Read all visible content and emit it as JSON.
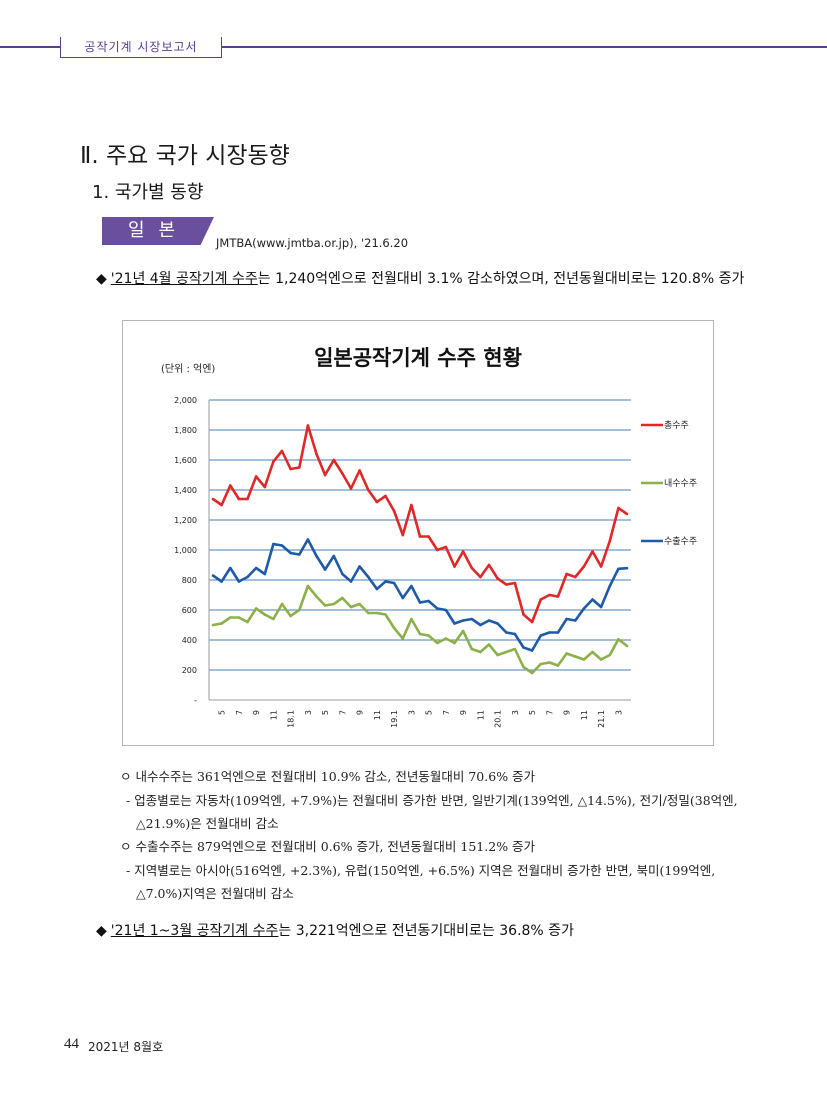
{
  "header": {
    "tab": "공작기계 시장보고서"
  },
  "section": {
    "title": "Ⅱ. 주요 국가 시장동향",
    "subtitle": "1. 국가별 동향",
    "country_tag": "일본",
    "source": "JMTBA(www.jmtba.or.jp), '21.6.20"
  },
  "bullet1": {
    "marker": "◆",
    "underlined": "'21년 4월 공작기계 수주",
    "text": "는 1,240억엔으로 전월대비 3.1% 감소하였으며, 전년동월대비로는 120.8% 증가"
  },
  "details": [
    "ㅇ 내수수주는 361억엔으로 전월대비 10.9% 감소, 전년동월대비 70.6% 증가",
    "- 업종별로는 자동차(109억엔, +7.9%)는 전월대비 증가한 반면, 일반기계(139억엔, △14.5%), 전기/정밀(38억엔,",
    "△21.9%)은 전월대비 감소",
    "ㅇ 수출수주는 879억엔으로 전월대비 0.6% 증가, 전년동월대비 151.2% 증가",
    "- 지역별로는 아시아(516억엔, +2.3%), 유럽(150억엔, +6.5%) 지역은 전월대비 증가한 반면, 북미(199억엔,",
    "△7.0%)지역은 전월대비 감소"
  ],
  "bullet2": {
    "marker": "◆",
    "underlined": "'21년 1~3월 공작기계 수주",
    "text": "는 3,221억엔으로 전년동기대비로는 36.8% 증가"
  },
  "footer": {
    "page": "44",
    "issue": "2021년 8월호"
  },
  "chart_data": {
    "type": "line",
    "title": "일본공작기계 수주 현황",
    "unit_label": "(단위 : 억엔)",
    "ylim": [
      0,
      2000
    ],
    "yticks": [
      "-",
      "200",
      "400",
      "600",
      "800",
      "1,000",
      "1,200",
      "1,400",
      "1,600",
      "1,800",
      "2,000"
    ],
    "grid": true,
    "legend_position": "right",
    "x_tick_labels": [
      "5",
      "7",
      "9",
      "11",
      "18.1",
      "3",
      "5",
      "7",
      "9",
      "11",
      "19.1",
      "3",
      "5",
      "7",
      "9",
      "11",
      "20.1",
      "3",
      "5",
      "7",
      "9",
      "11",
      "21.1",
      "3"
    ],
    "colors": {
      "total": "#e02828",
      "domestic": "#8cb04a",
      "export": "#1f5aa8",
      "grid": "#4a7ebb"
    },
    "series": [
      {
        "name": "총수주",
        "color": "#e02828",
        "values": [
          1340,
          1300,
          1430,
          1340,
          1340,
          1490,
          1420,
          1590,
          1660,
          1540,
          1550,
          1830,
          1640,
          1500,
          1600,
          1510,
          1410,
          1530,
          1400,
          1320,
          1360,
          1260,
          1100,
          1300,
          1090,
          1090,
          1000,
          1020,
          890,
          990,
          880,
          820,
          900,
          810,
          770,
          780,
          570,
          520,
          670,
          700,
          690,
          840,
          820,
          890,
          990,
          890,
          1060,
          1280,
          1240
        ]
      },
      {
        "name": "내수수주",
        "color": "#8cb04a",
        "values": [
          500,
          510,
          550,
          550,
          520,
          610,
          570,
          540,
          640,
          560,
          600,
          760,
          690,
          630,
          640,
          680,
          620,
          640,
          580,
          580,
          570,
          480,
          410,
          540,
          440,
          430,
          380,
          410,
          380,
          460,
          340,
          320,
          370,
          300,
          320,
          340,
          220,
          180,
          240,
          250,
          230,
          310,
          290,
          270,
          320,
          270,
          300,
          405,
          361
        ]
      },
      {
        "name": "수출수주",
        "color": "#1f5aa8",
        "values": [
          830,
          790,
          880,
          790,
          820,
          880,
          840,
          1040,
          1030,
          980,
          970,
          1070,
          960,
          870,
          960,
          840,
          790,
          890,
          820,
          740,
          790,
          780,
          680,
          760,
          650,
          660,
          610,
          600,
          510,
          530,
          540,
          500,
          530,
          510,
          450,
          440,
          350,
          330,
          430,
          450,
          450,
          540,
          530,
          610,
          670,
          620,
          760,
          875,
          879
        ]
      }
    ]
  }
}
